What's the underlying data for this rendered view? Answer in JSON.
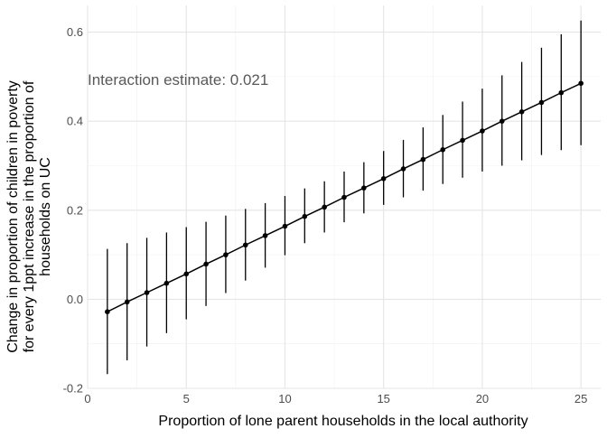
{
  "chart_data": {
    "type": "line",
    "title": "",
    "xlabel": "Proportion of lone parent households in the local authority",
    "ylabel_lines": [
      "Change in proportion of children in poverty",
      "for every 1ppt increase in the proportion of",
      "households on UC"
    ],
    "annotation": "Interaction estimate: 0.021",
    "xlim": [
      0,
      26
    ],
    "ylim": [
      -0.2,
      0.66
    ],
    "x_ticks": [
      0,
      5,
      10,
      15,
      20,
      25
    ],
    "x_tick_labels": [
      "0",
      "5",
      "10",
      "15",
      "20",
      "25"
    ],
    "y_ticks": [
      -0.2,
      0.0,
      0.2,
      0.4,
      0.6
    ],
    "y_tick_labels": [
      "-0.2",
      "0.0",
      "0.2",
      "0.4",
      "0.6"
    ],
    "grid": true,
    "series": [
      {
        "name": "estimate",
        "x": [
          1,
          2,
          3,
          4,
          5,
          6,
          7,
          8,
          9,
          10,
          11,
          12,
          13,
          14,
          15,
          16,
          17,
          18,
          19,
          20,
          21,
          22,
          23,
          24,
          25
        ],
        "values": [
          -0.028,
          -0.006,
          0.015,
          0.036,
          0.057,
          0.079,
          0.1,
          0.122,
          0.143,
          0.164,
          0.186,
          0.207,
          0.229,
          0.25,
          0.271,
          0.293,
          0.314,
          0.336,
          0.357,
          0.378,
          0.4,
          0.421,
          0.442,
          0.464,
          0.485
        ],
        "lower": [
          -0.168,
          -0.137,
          -0.106,
          -0.076,
          -0.045,
          -0.015,
          0.014,
          0.042,
          0.071,
          0.099,
          0.126,
          0.15,
          0.173,
          0.193,
          0.212,
          0.229,
          0.244,
          0.259,
          0.273,
          0.287,
          0.3,
          0.312,
          0.324,
          0.335,
          0.346
        ],
        "upper": [
          0.113,
          0.126,
          0.138,
          0.15,
          0.162,
          0.174,
          0.188,
          0.203,
          0.216,
          0.232,
          0.249,
          0.265,
          0.287,
          0.308,
          0.333,
          0.358,
          0.386,
          0.414,
          0.444,
          0.473,
          0.503,
          0.533,
          0.565,
          0.595,
          0.626
        ]
      }
    ]
  }
}
